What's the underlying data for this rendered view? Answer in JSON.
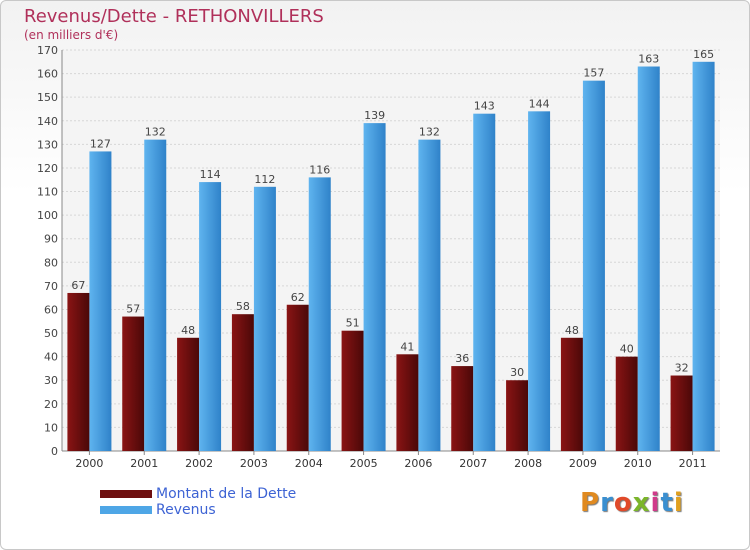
{
  "header": {
    "title": "Revenus/Dette - RETHONVILLERS",
    "subtitle": "(en milliers d'€)"
  },
  "legend": {
    "items": [
      {
        "label": "Montant de la Dette",
        "color": "#6e0f0f"
      },
      {
        "label": "Revenus",
        "color": "#4ea6e6"
      }
    ]
  },
  "logo": {
    "text": "Proxiti",
    "colors": [
      "#e08a20",
      "#3a8fd0",
      "#e04a2a",
      "#7bb52a",
      "#d03a8a",
      "#3a8fd0",
      "#e0a020"
    ]
  },
  "chart_data": {
    "type": "bar",
    "categories": [
      "2000",
      "2001",
      "2002",
      "2003",
      "2004",
      "2005",
      "2006",
      "2007",
      "2008",
      "2009",
      "2010",
      "2011"
    ],
    "series": [
      {
        "name": "Montant de la Dette",
        "values": [
          67,
          57,
          48,
          58,
          62,
          51,
          41,
          36,
          30,
          48,
          40,
          32
        ],
        "color": "#6e0f0f"
      },
      {
        "name": "Revenus",
        "values": [
          127,
          132,
          114,
          112,
          116,
          139,
          132,
          143,
          144,
          157,
          163,
          165
        ],
        "color": "#4ea6e6"
      }
    ],
    "ylim": [
      0,
      170
    ],
    "yticks": [
      "0",
      "10",
      "20",
      "30",
      "40",
      "50",
      "60",
      "70",
      "80",
      "90",
      "100",
      "110",
      "120",
      "130",
      "140",
      "150",
      "160",
      "170"
    ],
    "grid": true,
    "legend_position": "bottom-left"
  }
}
